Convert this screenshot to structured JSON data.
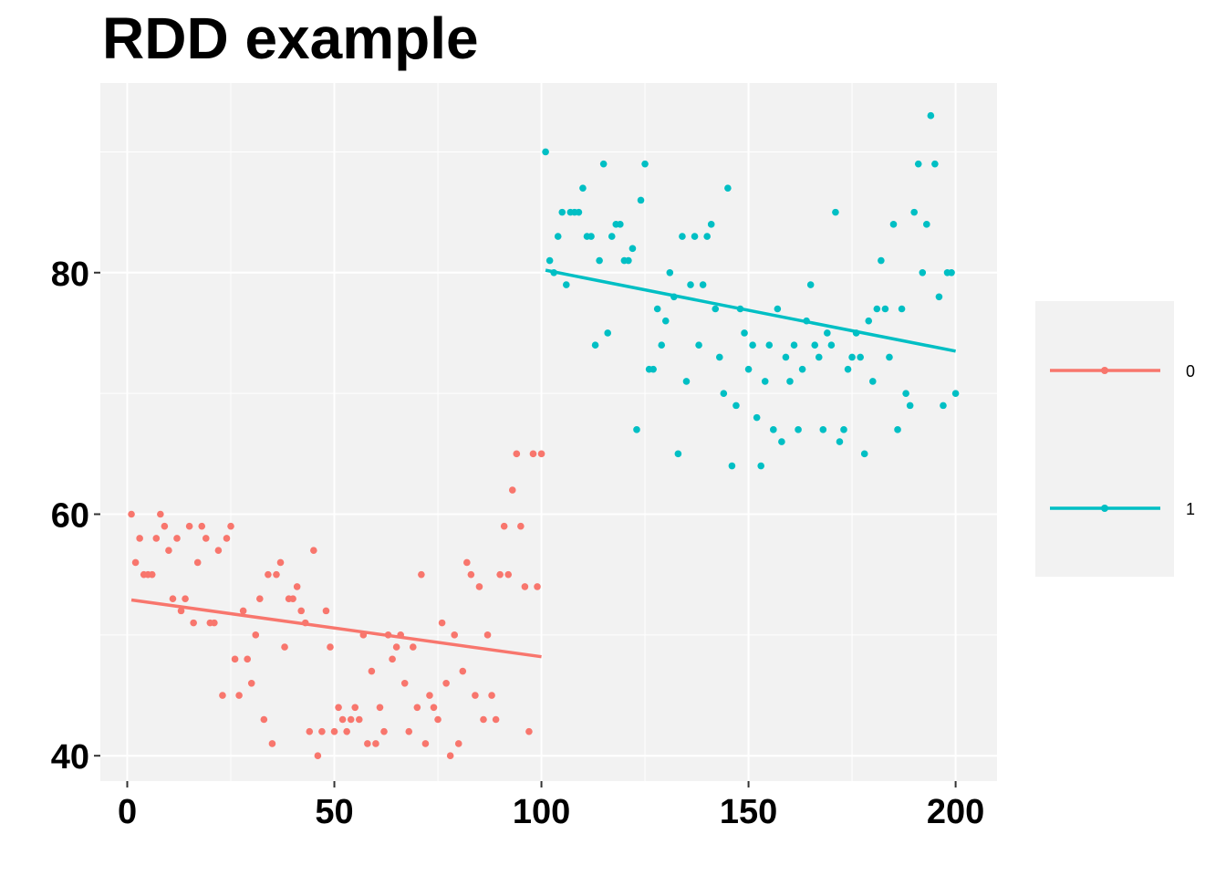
{
  "chart_data": {
    "type": "scatter",
    "title": "RDD example",
    "xlabel": "",
    "ylabel": "",
    "xlim": [
      -6.5,
      210
    ],
    "ylim": [
      37.9,
      95.7
    ],
    "x_ticks": [
      0,
      50,
      100,
      150,
      200
    ],
    "x_minor_ticks": [
      25,
      75,
      125,
      175
    ],
    "y_ticks": [
      40,
      60,
      80
    ],
    "y_minor_ticks": [
      50,
      70,
      90
    ],
    "grid": true,
    "legend_position": "right",
    "colors": {
      "0": "#F8766D",
      "1": "#00BFC4",
      "panel": "#F2F2F2",
      "grid": "#FFFFFF",
      "legend_bg": "#F2F2F2"
    },
    "series": [
      {
        "name": "0",
        "points": [
          [
            1,
            60
          ],
          [
            2,
            56
          ],
          [
            3,
            58
          ],
          [
            4,
            55
          ],
          [
            5,
            55
          ],
          [
            6,
            55
          ],
          [
            7,
            58
          ],
          [
            8,
            60
          ],
          [
            9,
            59
          ],
          [
            10,
            57
          ],
          [
            11,
            53
          ],
          [
            12,
            58
          ],
          [
            13,
            52
          ],
          [
            14,
            53
          ],
          [
            15,
            59
          ],
          [
            16,
            51
          ],
          [
            17,
            56
          ],
          [
            18,
            59
          ],
          [
            19,
            58
          ],
          [
            20,
            51
          ],
          [
            21,
            51
          ],
          [
            22,
            57
          ],
          [
            23,
            45
          ],
          [
            24,
            58
          ],
          [
            25,
            59
          ],
          [
            26,
            48
          ],
          [
            27,
            45
          ],
          [
            28,
            52
          ],
          [
            29,
            48
          ],
          [
            30,
            46
          ],
          [
            31,
            50
          ],
          [
            32,
            53
          ],
          [
            33,
            43
          ],
          [
            34,
            55
          ],
          [
            35,
            41
          ],
          [
            36,
            55
          ],
          [
            37,
            56
          ],
          [
            38,
            49
          ],
          [
            39,
            53
          ],
          [
            40,
            53
          ],
          [
            41,
            54
          ],
          [
            42,
            52
          ],
          [
            43,
            51
          ],
          [
            44,
            42
          ],
          [
            45,
            57
          ],
          [
            46,
            40
          ],
          [
            47,
            42
          ],
          [
            48,
            52
          ],
          [
            49,
            49
          ],
          [
            50,
            42
          ],
          [
            51,
            44
          ],
          [
            52,
            43
          ],
          [
            53,
            42
          ],
          [
            54,
            43
          ],
          [
            55,
            44
          ],
          [
            56,
            43
          ],
          [
            57,
            50
          ],
          [
            58,
            41
          ],
          [
            59,
            47
          ],
          [
            60,
            41
          ],
          [
            61,
            44
          ],
          [
            62,
            42
          ],
          [
            63,
            50
          ],
          [
            64,
            48
          ],
          [
            65,
            49
          ],
          [
            66,
            50
          ],
          [
            67,
            46
          ],
          [
            68,
            42
          ],
          [
            69,
            49
          ],
          [
            70,
            44
          ],
          [
            71,
            55
          ],
          [
            72,
            41
          ],
          [
            73,
            45
          ],
          [
            74,
            44
          ],
          [
            75,
            43
          ],
          [
            76,
            51
          ],
          [
            77,
            46
          ],
          [
            78,
            40
          ],
          [
            79,
            50
          ],
          [
            80,
            41
          ],
          [
            81,
            47
          ],
          [
            82,
            56
          ],
          [
            83,
            55
          ],
          [
            84,
            45
          ],
          [
            85,
            54
          ],
          [
            86,
            43
          ],
          [
            87,
            50
          ],
          [
            88,
            45
          ],
          [
            89,
            43
          ],
          [
            90,
            55
          ],
          [
            91,
            59
          ],
          [
            92,
            55
          ],
          [
            93,
            62
          ],
          [
            94,
            65
          ],
          [
            95,
            59
          ],
          [
            96,
            54
          ],
          [
            97,
            42
          ],
          [
            98,
            65
          ],
          [
            99,
            54
          ],
          [
            100,
            65
          ]
        ],
        "fit": {
          "x": [
            1,
            100
          ],
          "y": [
            52.9,
            48.2
          ]
        }
      },
      {
        "name": "1",
        "points": [
          [
            101,
            90
          ],
          [
            102,
            81
          ],
          [
            103,
            80
          ],
          [
            104,
            83
          ],
          [
            105,
            85
          ],
          [
            106,
            79
          ],
          [
            107,
            85
          ],
          [
            108,
            85
          ],
          [
            109,
            85
          ],
          [
            110,
            87
          ],
          [
            111,
            83
          ],
          [
            112,
            83
          ],
          [
            113,
            74
          ],
          [
            114,
            81
          ],
          [
            115,
            89
          ],
          [
            116,
            75
          ],
          [
            117,
            83
          ],
          [
            118,
            84
          ],
          [
            119,
            84
          ],
          [
            120,
            81
          ],
          [
            121,
            81
          ],
          [
            122,
            82
          ],
          [
            123,
            67
          ],
          [
            124,
            86
          ],
          [
            125,
            89
          ],
          [
            126,
            72
          ],
          [
            127,
            72
          ],
          [
            128,
            77
          ],
          [
            129,
            74
          ],
          [
            130,
            76
          ],
          [
            131,
            80
          ],
          [
            132,
            78
          ],
          [
            133,
            65
          ],
          [
            134,
            83
          ],
          [
            135,
            71
          ],
          [
            136,
            79
          ],
          [
            137,
            83
          ],
          [
            138,
            74
          ],
          [
            139,
            79
          ],
          [
            140,
            83
          ],
          [
            141,
            84
          ],
          [
            142,
            77
          ],
          [
            143,
            73
          ],
          [
            144,
            70
          ],
          [
            145,
            87
          ],
          [
            146,
            64
          ],
          [
            147,
            69
          ],
          [
            148,
            77
          ],
          [
            149,
            75
          ],
          [
            150,
            72
          ],
          [
            151,
            74
          ],
          [
            152,
            68
          ],
          [
            153,
            64
          ],
          [
            154,
            71
          ],
          [
            155,
            74
          ],
          [
            156,
            67
          ],
          [
            157,
            77
          ],
          [
            158,
            66
          ],
          [
            159,
            73
          ],
          [
            160,
            71
          ],
          [
            161,
            74
          ],
          [
            162,
            67
          ],
          [
            163,
            72
          ],
          [
            164,
            76
          ],
          [
            165,
            79
          ],
          [
            166,
            74
          ],
          [
            167,
            73
          ],
          [
            168,
            67
          ],
          [
            169,
            75
          ],
          [
            170,
            74
          ],
          [
            171,
            85
          ],
          [
            172,
            66
          ],
          [
            173,
            67
          ],
          [
            174,
            72
          ],
          [
            175,
            73
          ],
          [
            176,
            75
          ],
          [
            177,
            73
          ],
          [
            178,
            65
          ],
          [
            179,
            76
          ],
          [
            180,
            71
          ],
          [
            181,
            77
          ],
          [
            182,
            81
          ],
          [
            183,
            77
          ],
          [
            184,
            73
          ],
          [
            185,
            84
          ],
          [
            186,
            67
          ],
          [
            187,
            77
          ],
          [
            188,
            70
          ],
          [
            189,
            69
          ],
          [
            190,
            85
          ],
          [
            191,
            89
          ],
          [
            192,
            80
          ],
          [
            193,
            84
          ],
          [
            194,
            93
          ],
          [
            195,
            89
          ],
          [
            196,
            78
          ],
          [
            197,
            69
          ],
          [
            198,
            80
          ],
          [
            199,
            80
          ],
          [
            200,
            70
          ]
        ],
        "fit": {
          "x": [
            101,
            200
          ],
          "y": [
            80.2,
            73.5
          ]
        }
      }
    ]
  }
}
